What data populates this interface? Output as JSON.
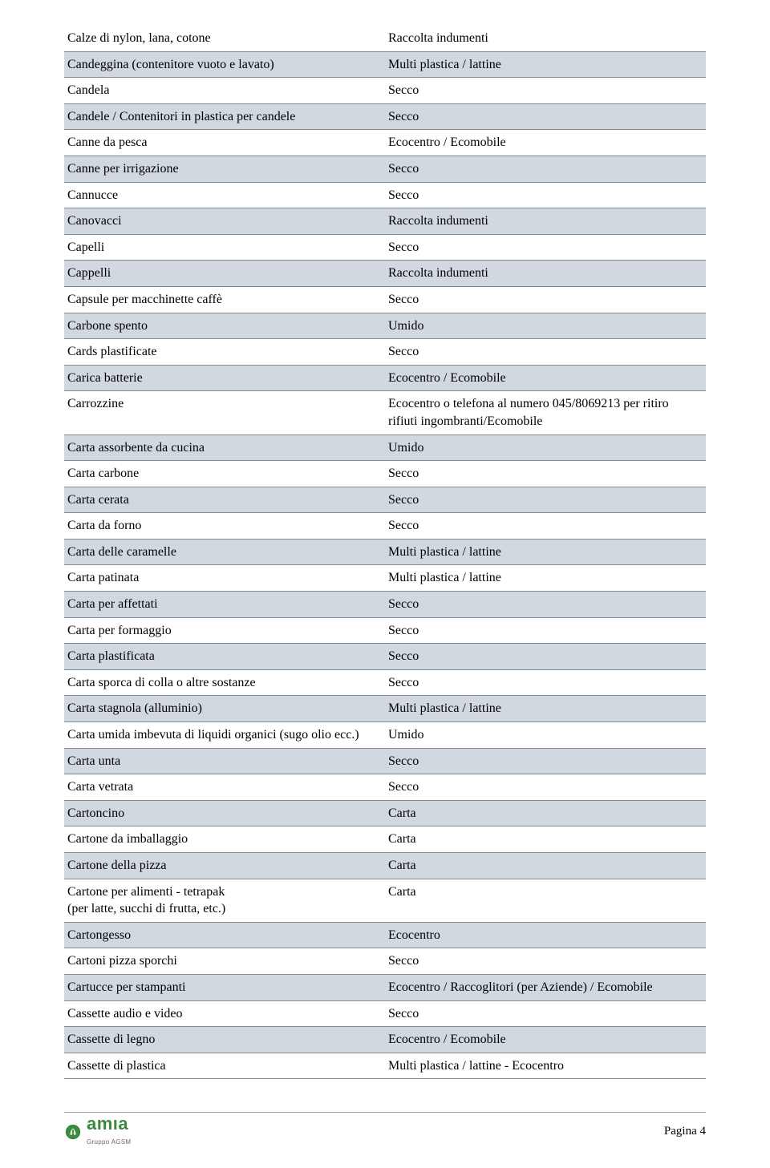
{
  "colors": {
    "page_bg": "#ffffff",
    "text": "#000000",
    "row_shaded_bg": "#d1d8e0",
    "row_border": "#7e8a96",
    "footer_rule": "#9aa3ad",
    "logo_green": "#3b8a3f",
    "logo_sub": "#6a6a6a"
  },
  "typography": {
    "body_font": "Times New Roman",
    "body_size_pt": 12,
    "logo_font": "Arial",
    "logo_size_pt": 16
  },
  "table": {
    "column_widths_pct": [
      50,
      50
    ],
    "rows": [
      {
        "item": "Calze di nylon, lana, cotone",
        "dest": "Raccolta indumenti",
        "shaded": false
      },
      {
        "item": "Candeggina (contenitore vuoto e lavato)",
        "dest": "Multi plastica / lattine",
        "shaded": true
      },
      {
        "item": "Candela",
        "dest": "Secco",
        "shaded": false
      },
      {
        "item": "Candele / Contenitori in plastica per candele",
        "dest": "Secco",
        "shaded": true
      },
      {
        "item": "Canne da pesca",
        "dest": "Ecocentro / Ecomobile",
        "shaded": false
      },
      {
        "item": "Canne per irrigazione",
        "dest": "Secco",
        "shaded": true
      },
      {
        "item": "Cannucce",
        "dest": "Secco",
        "shaded": false
      },
      {
        "item": "Canovacci",
        "dest": "Raccolta indumenti",
        "shaded": true
      },
      {
        "item": "Capelli",
        "dest": "Secco",
        "shaded": false
      },
      {
        "item": "Cappelli",
        "dest": "Raccolta indumenti",
        "shaded": true
      },
      {
        "item": "Capsule per macchinette caffè",
        "dest": "Secco",
        "shaded": false
      },
      {
        "item": "Carbone spento",
        "dest": "Umido",
        "shaded": true
      },
      {
        "item": "Cards plastificate",
        "dest": "Secco",
        "shaded": false
      },
      {
        "item": "Carica batterie",
        "dest": "Ecocentro / Ecomobile",
        "shaded": true
      },
      {
        "item": "Carrozzine",
        "dest": "Ecocentro o telefona al numero 045/8069213 per ritiro rifiuti ingombranti/Ecomobile",
        "shaded": false
      },
      {
        "item": "Carta assorbente da cucina",
        "dest": "Umido",
        "shaded": true
      },
      {
        "item": "Carta carbone",
        "dest": "Secco",
        "shaded": false
      },
      {
        "item": "Carta cerata",
        "dest": "Secco",
        "shaded": true
      },
      {
        "item": "Carta da forno",
        "dest": "Secco",
        "shaded": false
      },
      {
        "item": "Carta delle caramelle",
        "dest": "Multi plastica / lattine",
        "shaded": true
      },
      {
        "item": "Carta patinata",
        "dest": "Multi plastica / lattine",
        "shaded": false
      },
      {
        "item": "Carta per affettati",
        "dest": "Secco",
        "shaded": true
      },
      {
        "item": "Carta per formaggio",
        "dest": "Secco",
        "shaded": false
      },
      {
        "item": "Carta plastificata",
        "dest": "Secco",
        "shaded": true
      },
      {
        "item": "Carta sporca di colla o altre sostanze",
        "dest": "Secco",
        "shaded": false
      },
      {
        "item": "Carta stagnola (alluminio)",
        "dest": "Multi plastica / lattine",
        "shaded": true
      },
      {
        "item": "Carta umida imbevuta di liquidi organici (sugo olio ecc.)",
        "dest": "Umido",
        "shaded": false
      },
      {
        "item": "Carta unta",
        "dest": "Secco",
        "shaded": true
      },
      {
        "item": "Carta vetrata",
        "dest": "Secco",
        "shaded": false
      },
      {
        "item": "Cartoncino",
        "dest": "Carta",
        "shaded": true
      },
      {
        "item": "Cartone da imballaggio",
        "dest": "Carta",
        "shaded": false
      },
      {
        "item": "Cartone della pizza",
        "dest": "Carta",
        "shaded": true
      },
      {
        "item": "Cartone per alimenti - tetrapak\n(per latte, succhi di frutta, etc.)",
        "dest": "Carta",
        "shaded": false
      },
      {
        "item": "Cartongesso",
        "dest": "Ecocentro",
        "shaded": true
      },
      {
        "item": "Cartoni pizza sporchi",
        "dest": "Secco",
        "shaded": false
      },
      {
        "item": "Cartucce per stampanti",
        "dest": "Ecocentro / Raccoglitori (per Aziende) / Ecomobile",
        "shaded": true
      },
      {
        "item": "Cassette audio e video",
        "dest": "Secco",
        "shaded": false
      },
      {
        "item": "Cassette di legno",
        "dest": "Ecocentro / Ecomobile",
        "shaded": true
      },
      {
        "item": "Cassette di plastica",
        "dest": "Multi plastica / lattine - Ecocentro",
        "shaded": false
      }
    ]
  },
  "footer": {
    "logo_text": "amıa",
    "logo_subtext": "Gruppo AGSM",
    "page_label": "Pagina 4"
  }
}
